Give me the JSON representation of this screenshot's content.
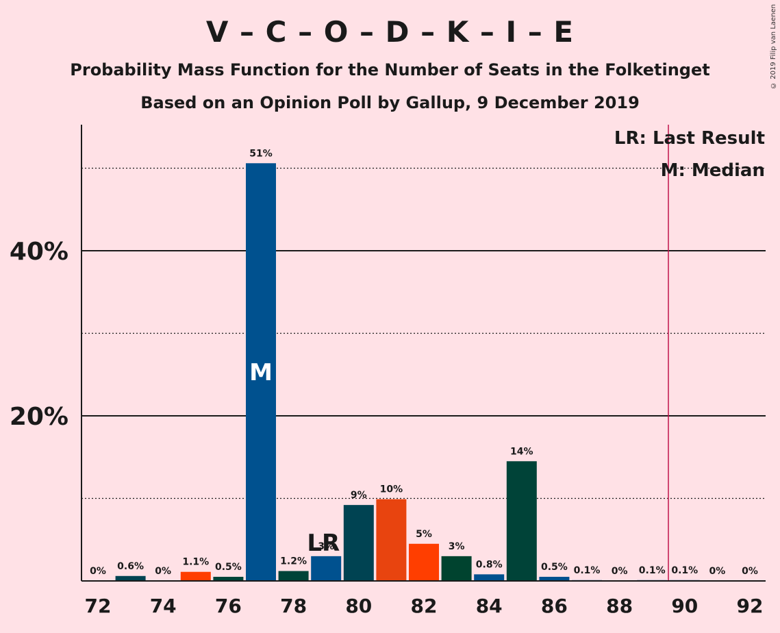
{
  "title": "V – C – O – D – K – I – E",
  "subtitle": "Probability Mass Function for the Number of Seats in the Folketinget",
  "subtitle2": "Based on an Opinion Poll by Gallup, 9 December 2019",
  "copyright": "© 2019 Filip van Laenen",
  "legend": {
    "last_result": "LR: Last Result",
    "median": "M: Median"
  },
  "markers": {
    "median_label": "M",
    "last_result_label": "LR"
  },
  "colors": {
    "background": "#ffe1e6",
    "majority_line": "#c0134a",
    "blue": "#00518f",
    "dark_teal": "#004352",
    "orange_red": "#e8440f",
    "red_orange": "#ff3e00",
    "dark_green": "#00432f",
    "teal_green": "#004338"
  },
  "chart_data": {
    "type": "bar",
    "title": "V – C – O – D – K – I – E",
    "x": [
      72,
      73,
      74,
      75,
      76,
      77,
      78,
      79,
      80,
      81,
      82,
      83,
      84,
      85,
      86,
      87,
      88,
      89,
      90,
      91,
      92
    ],
    "values": [
      0,
      0.6,
      0,
      1.1,
      0.5,
      50.6,
      1.2,
      3.0,
      9.2,
      9.9,
      4.5,
      3.0,
      0.8,
      14.5,
      0.5,
      0.1,
      0,
      0.1,
      0.1,
      0,
      0
    ],
    "labels": [
      "0%",
      "0.6%",
      "0%",
      "1.1%",
      "0.5%",
      "51%",
      "1.2%",
      "3%",
      "9%",
      "10%",
      "5%",
      "3%",
      "0.8%",
      "14%",
      "0.5%",
      "0.1%",
      "0%",
      "0.1%",
      "0.1%",
      "0%",
      "0%"
    ],
    "bar_colors": [
      "#00518f",
      "#004352",
      "#00518f",
      "#ff3e00",
      "#004338",
      "#00518f",
      "#004338",
      "#00518f",
      "#004352",
      "#e8440f",
      "#ff3e00",
      "#00432f",
      "#00518f",
      "#004338",
      "#00518f",
      "#00518f",
      "#00518f",
      "#00518f",
      "#00518f",
      "#00518f",
      "#00518f"
    ],
    "x_ticks": [
      "72",
      "74",
      "76",
      "78",
      "80",
      "82",
      "84",
      "86",
      "88",
      "90",
      "92"
    ],
    "y_ticks": [
      "20%",
      "40%"
    ],
    "ylim": [
      0,
      55
    ],
    "median_seat": 77,
    "last_result_seat": 79,
    "majority_line_seat": 89.5,
    "grid": "solid at 20% and 40%, dotted at 10%, 30% and 50%"
  }
}
